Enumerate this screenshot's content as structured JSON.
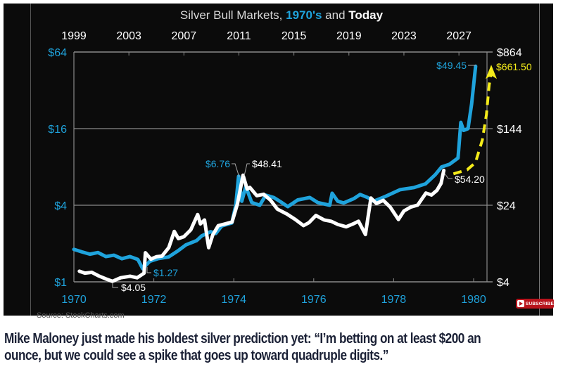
{
  "chart_data": {
    "type": "line",
    "title_parts": [
      "Silver Bull Markets, ",
      "1970's",
      " and ",
      "Today"
    ],
    "source": "Source: StockCharts.com",
    "x_bottom": {
      "ticks": [
        "1970",
        "1972",
        "1974",
        "1976",
        "1978",
        "1980"
      ],
      "range": [
        1970,
        1980
      ],
      "color": "#1fa3dc"
    },
    "x_top": {
      "ticks": [
        "1999",
        "2003",
        "2007",
        "2011",
        "2015",
        "2019",
        "2023",
        "2027"
      ],
      "range": [
        1999,
        2028.9
      ],
      "color": "#ffffff"
    },
    "y_left": {
      "ticks": [
        "$64",
        "$16",
        "$4",
        "$1"
      ],
      "values": [
        64,
        16,
        4,
        1
      ],
      "scale": "log",
      "color": "#1fa3dc"
    },
    "y_right": {
      "ticks": [
        "$864",
        "$144",
        "$24",
        "$4"
      ],
      "values": [
        864,
        144,
        24,
        4
      ],
      "scale": "log",
      "color": "#ffffff"
    },
    "grid": "horizontal",
    "series": [
      {
        "name": "1970's",
        "axis": "bottom-left",
        "color": "#1fa3dc",
        "points": [
          [
            1970.0,
            1.8
          ],
          [
            1970.2,
            1.72
          ],
          [
            1970.4,
            1.65
          ],
          [
            1970.6,
            1.7
          ],
          [
            1970.8,
            1.58
          ],
          [
            1971.0,
            1.62
          ],
          [
            1971.2,
            1.52
          ],
          [
            1971.4,
            1.58
          ],
          [
            1971.6,
            1.5
          ],
          [
            1971.72,
            1.27
          ],
          [
            1971.9,
            1.45
          ],
          [
            1972.1,
            1.52
          ],
          [
            1972.37,
            1.57
          ],
          [
            1972.6,
            1.75
          ],
          [
            1972.8,
            1.95
          ],
          [
            1973.07,
            2.11
          ],
          [
            1973.2,
            2.3
          ],
          [
            1973.42,
            2.48
          ],
          [
            1973.55,
            2.4
          ],
          [
            1973.7,
            2.75
          ],
          [
            1973.95,
            2.9
          ],
          [
            1974.05,
            4.0
          ],
          [
            1974.12,
            6.76
          ],
          [
            1974.2,
            4.3
          ],
          [
            1974.3,
            5.6
          ],
          [
            1974.45,
            4.2
          ],
          [
            1974.65,
            4.0
          ],
          [
            1974.8,
            4.8
          ],
          [
            1975.0,
            4.6
          ],
          [
            1975.2,
            4.2
          ],
          [
            1975.35,
            3.9
          ],
          [
            1975.6,
            4.4
          ],
          [
            1975.9,
            4.6
          ],
          [
            1976.1,
            4.2
          ],
          [
            1976.4,
            4.0
          ],
          [
            1976.46,
            4.97
          ],
          [
            1976.6,
            4.3
          ],
          [
            1976.75,
            4.17
          ],
          [
            1977.0,
            4.5
          ],
          [
            1977.16,
            4.86
          ],
          [
            1977.35,
            4.6
          ],
          [
            1977.5,
            4.3
          ],
          [
            1977.8,
            4.7
          ],
          [
            1978.16,
            5.3
          ],
          [
            1978.5,
            5.5
          ],
          [
            1978.8,
            5.9
          ],
          [
            1979.04,
            6.95
          ],
          [
            1979.2,
            8.0
          ],
          [
            1979.4,
            8.4
          ],
          [
            1979.61,
            9.4
          ],
          [
            1979.68,
            17.9
          ],
          [
            1979.75,
            15.5
          ],
          [
            1979.86,
            16
          ],
          [
            1979.95,
            25
          ],
          [
            1980.05,
            49.45
          ]
        ]
      },
      {
        "name": "Today",
        "axis": "top-right",
        "color": "#ffffff",
        "points": [
          [
            1999.4,
            5.13
          ],
          [
            1999.8,
            4.9
          ],
          [
            2000.3,
            5.0
          ],
          [
            2000.8,
            4.6
          ],
          [
            2001.3,
            4.3
          ],
          [
            2001.8,
            4.05
          ],
          [
            2002.4,
            4.4
          ],
          [
            2003.1,
            4.56
          ],
          [
            2003.6,
            4.4
          ],
          [
            2004.1,
            4.9
          ],
          [
            2004.2,
            7.9
          ],
          [
            2004.6,
            6.8
          ],
          [
            2005.0,
            7.2
          ],
          [
            2005.4,
            7.3
          ],
          [
            2005.9,
            8.9
          ],
          [
            2006.3,
            13.0
          ],
          [
            2006.6,
            11.0
          ],
          [
            2007.0,
            11.5
          ],
          [
            2007.5,
            13.5
          ],
          [
            2008.0,
            19.3
          ],
          [
            2008.2,
            15.5
          ],
          [
            2008.5,
            17
          ],
          [
            2008.8,
            8.9
          ],
          [
            2009.1,
            12
          ],
          [
            2009.5,
            14.9
          ],
          [
            2010.0,
            15.5
          ],
          [
            2010.5,
            16.2
          ],
          [
            2010.9,
            25
          ],
          [
            2011.3,
            48.41
          ],
          [
            2011.6,
            35
          ],
          [
            2011.8,
            36.4
          ],
          [
            2012.3,
            30
          ],
          [
            2012.8,
            31
          ],
          [
            2013.3,
            27
          ],
          [
            2013.8,
            21.9
          ],
          [
            2014.5,
            19.5
          ],
          [
            2015.1,
            17.2
          ],
          [
            2015.7,
            14.9
          ],
          [
            2016.1,
            16
          ],
          [
            2016.6,
            18.9
          ],
          [
            2017.2,
            17
          ],
          [
            2017.7,
            16.5
          ],
          [
            2018.2,
            15.3
          ],
          [
            2018.8,
            14.5
          ],
          [
            2019.3,
            15.5
          ],
          [
            2019.7,
            16.5
          ],
          [
            2020.2,
            12.1
          ],
          [
            2020.6,
            28.4
          ],
          [
            2021.0,
            25
          ],
          [
            2021.5,
            26.9
          ],
          [
            2022.0,
            23
          ],
          [
            2022.6,
            17.2
          ],
          [
            2023.0,
            21
          ],
          [
            2023.5,
            23
          ],
          [
            2024.0,
            24.1
          ],
          [
            2024.6,
            31.9
          ],
          [
            2025.0,
            30.5
          ],
          [
            2025.4,
            34
          ],
          [
            2025.7,
            40
          ],
          [
            2025.9,
            54.2
          ]
        ]
      },
      {
        "axis": "top-right",
        "color": "#f5ec1a",
        "style": "dashed-arrow",
        "points": [
          [
            2026.6,
            50
          ],
          [
            2027.6,
            55
          ],
          [
            2028.2,
            65
          ],
          [
            2028.7,
            110
          ],
          [
            2029.0,
            200
          ],
          [
            2029.2,
            400
          ],
          [
            2029.35,
            661.5
          ]
        ]
      }
    ],
    "annotations": [
      {
        "text": "$6.76",
        "series": 0,
        "color": "#1fa3dc"
      },
      {
        "text": "$1.27",
        "series": 0,
        "color": "#1fa3dc"
      },
      {
        "text": "$49.45",
        "series": 0,
        "color": "#1fa3dc"
      },
      {
        "text": "$48.41",
        "series": 1,
        "color": "#ffffff"
      },
      {
        "text": "$4.05",
        "series": 1,
        "color": "#ffffff"
      },
      {
        "text": "$54.20",
        "series": 1,
        "color": "#ffffff"
      },
      {
        "text": "$661.50",
        "series": 2,
        "color": "#f5ec1a"
      }
    ]
  },
  "badge": {
    "label": "SUBSCRIBE",
    "color": "#b8141c"
  },
  "caption": {
    "lines": [
      "Mike Maloney just made his boldest silver prediction yet: “I’m betting on at least $200 an",
      "ounce, but we could see a spike that goes up toward quadruple digits.”"
    ]
  }
}
